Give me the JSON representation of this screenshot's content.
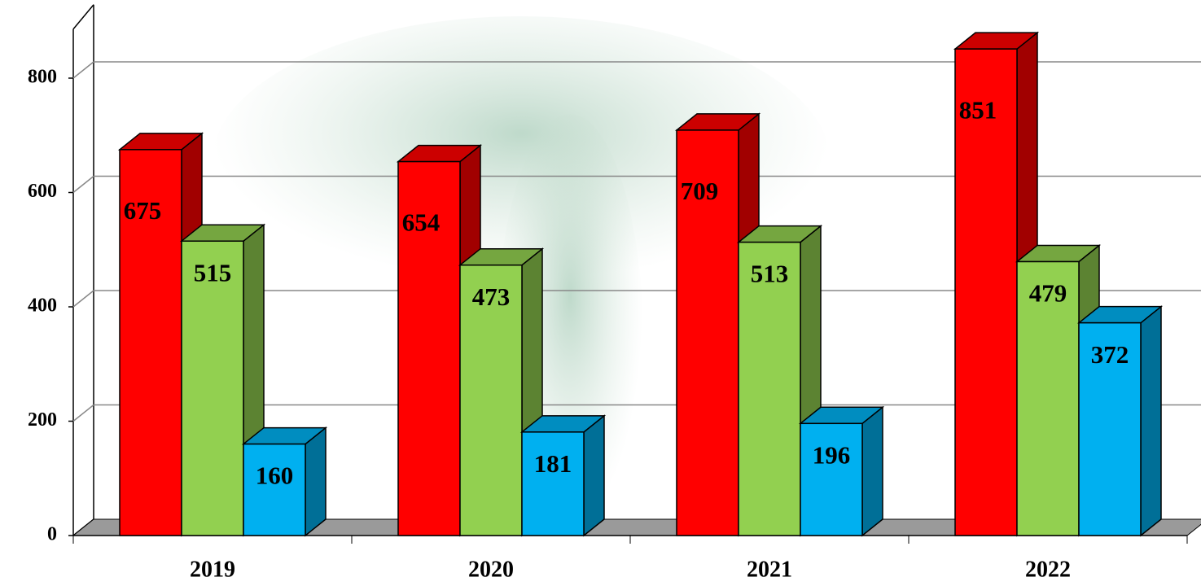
{
  "chart_data": {
    "type": "bar3d",
    "categories": [
      "2019",
      "2020",
      "2021",
      "2022"
    ],
    "series": [
      {
        "color": "#ff0000",
        "values": [
          675,
          654,
          709,
          851
        ]
      },
      {
        "color": "#92d050",
        "values": [
          515,
          473,
          513,
          479
        ]
      },
      {
        "color": "#00b0f0",
        "values": [
          160,
          181,
          196,
          372
        ]
      }
    ],
    "ylim": [
      0,
      900
    ],
    "yticks": [
      0,
      200,
      400,
      600,
      800
    ],
    "grid": true
  }
}
